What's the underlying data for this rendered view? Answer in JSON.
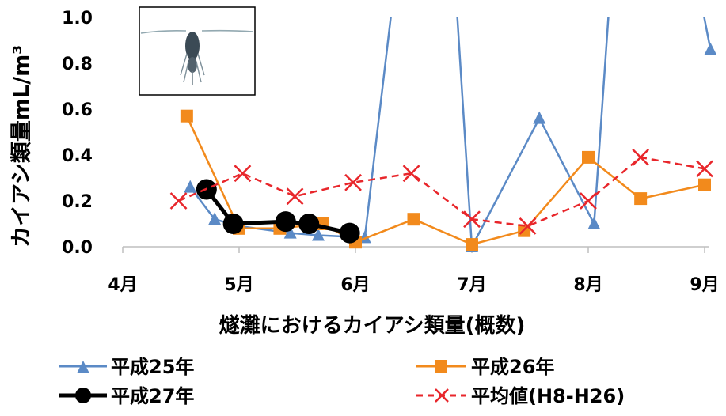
{
  "chart_data": {
    "type": "line",
    "title": "燧灘におけるカイアシ類量(概数)",
    "ylabel": "カイアシ類量mL/m³",
    "xlabel": "",
    "x_ticks": [
      "4月",
      "5月",
      "6月",
      "7月",
      "8月",
      "9月"
    ],
    "y_ticks": [
      "0.0",
      "0.2",
      "0.4",
      "0.6",
      "0.8",
      "1.0"
    ],
    "ylim": [
      0,
      1.0
    ],
    "xlim": [
      4,
      9
    ],
    "grid": false,
    "legend_position": "bottom",
    "series": [
      {
        "name": "平成25年",
        "color": "#5b8ac6",
        "marker": "triangle",
        "dash": false,
        "points": [
          {
            "x": 4.58,
            "y": 0.26
          },
          {
            "x": 4.79,
            "y": 0.12
          },
          {
            "x": 5.0,
            "y": 0.09
          },
          {
            "x": 5.44,
            "y": 0.06
          },
          {
            "x": 5.68,
            "y": 0.05
          },
          {
            "x": 6.08,
            "y": 0.04
          },
          {
            "x": 6.35,
            "y": 1.2
          },
          {
            "x": 6.85,
            "y": 1.2
          },
          {
            "x": 7.0,
            "y": 0.0
          },
          {
            "x": 7.58,
            "y": 0.56
          },
          {
            "x": 8.05,
            "y": 0.1
          },
          {
            "x": 8.2,
            "y": 1.2
          },
          {
            "x": 8.92,
            "y": 1.2
          },
          {
            "x": 9.05,
            "y": 0.86
          }
        ]
      },
      {
        "name": "平成26年",
        "color": "#f28a1c",
        "marker": "square",
        "dash": false,
        "points": [
          {
            "x": 4.55,
            "y": 0.57
          },
          {
            "x": 5.0,
            "y": 0.08
          },
          {
            "x": 5.35,
            "y": 0.08
          },
          {
            "x": 5.72,
            "y": 0.1
          },
          {
            "x": 6.0,
            "y": 0.02
          },
          {
            "x": 6.5,
            "y": 0.12
          },
          {
            "x": 7.0,
            "y": 0.01
          },
          {
            "x": 7.45,
            "y": 0.07
          },
          {
            "x": 8.0,
            "y": 0.39
          },
          {
            "x": 8.45,
            "y": 0.21
          },
          {
            "x": 9.0,
            "y": 0.27
          }
        ]
      },
      {
        "name": "平成27年",
        "color": "#000000",
        "marker": "circle",
        "dash": false,
        "points": [
          {
            "x": 4.72,
            "y": 0.25
          },
          {
            "x": 4.95,
            "y": 0.1
          },
          {
            "x": 5.4,
            "y": 0.11
          },
          {
            "x": 5.6,
            "y": 0.1
          },
          {
            "x": 5.95,
            "y": 0.06
          }
        ]
      },
      {
        "name": "平均値(H8-H26)",
        "color": "#e8262b",
        "marker": "x",
        "dash": true,
        "points": [
          {
            "x": 4.48,
            "y": 0.2
          },
          {
            "x": 5.03,
            "y": 0.32
          },
          {
            "x": 5.48,
            "y": 0.22
          },
          {
            "x": 5.98,
            "y": 0.28
          },
          {
            "x": 6.48,
            "y": 0.32
          },
          {
            "x": 7.0,
            "y": 0.12
          },
          {
            "x": 7.48,
            "y": 0.09
          },
          {
            "x": 8.0,
            "y": 0.2
          },
          {
            "x": 8.45,
            "y": 0.39
          },
          {
            "x": 9.0,
            "y": 0.34
          }
        ]
      }
    ]
  }
}
